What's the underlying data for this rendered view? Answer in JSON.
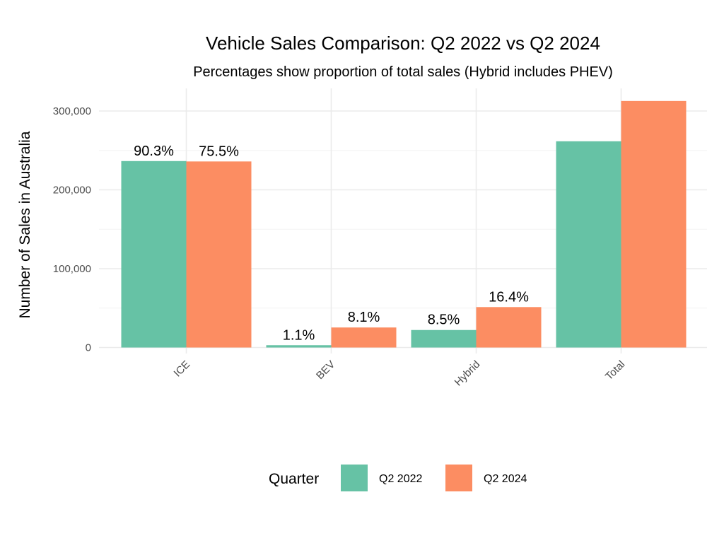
{
  "chart_data": {
    "type": "bar",
    "title": "Vehicle Sales Comparison: Q2 2022 vs Q2 2024",
    "subtitle": "Percentages show proportion of total sales (Hybrid includes PHEV)",
    "xlabel": "",
    "ylabel": "Number of Sales in Australia",
    "ylim": [
      0,
      330000
    ],
    "yticks": [
      0,
      100000,
      200000,
      300000
    ],
    "ytick_labels": [
      "0",
      "100,000",
      "200,000",
      "300,000"
    ],
    "categories": [
      "ICE",
      "BEV",
      "Hybrid",
      "Total"
    ],
    "series": [
      {
        "name": "Q2 2022",
        "color": "#66c2a5",
        "values": [
          236500,
          2900,
          22200,
          261600
        ],
        "labels": [
          "90.3%",
          "1.1%",
          "8.5%",
          ""
        ]
      },
      {
        "name": "Q2 2024",
        "color": "#fc8d62",
        "values": [
          236000,
          25400,
          51300,
          312700
        ],
        "labels": [
          "75.5%",
          "8.1%",
          "16.4%",
          ""
        ]
      }
    ],
    "legend": {
      "title": "Quarter",
      "position": "bottom"
    },
    "grid": true
  }
}
